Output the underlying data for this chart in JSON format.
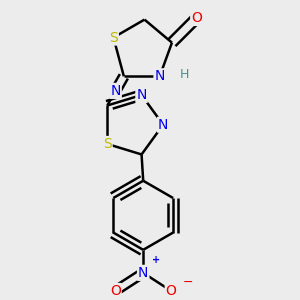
{
  "bg_color": "#ececec",
  "atom_colors": {
    "C": "#000000",
    "N": "#0000ee",
    "O": "#ee0000",
    "S": "#bbbb00",
    "H": "#4a9090"
  },
  "bond_color": "#000000",
  "bond_width": 1.8,
  "font_size_atoms": 10,
  "font_size_H": 9
}
